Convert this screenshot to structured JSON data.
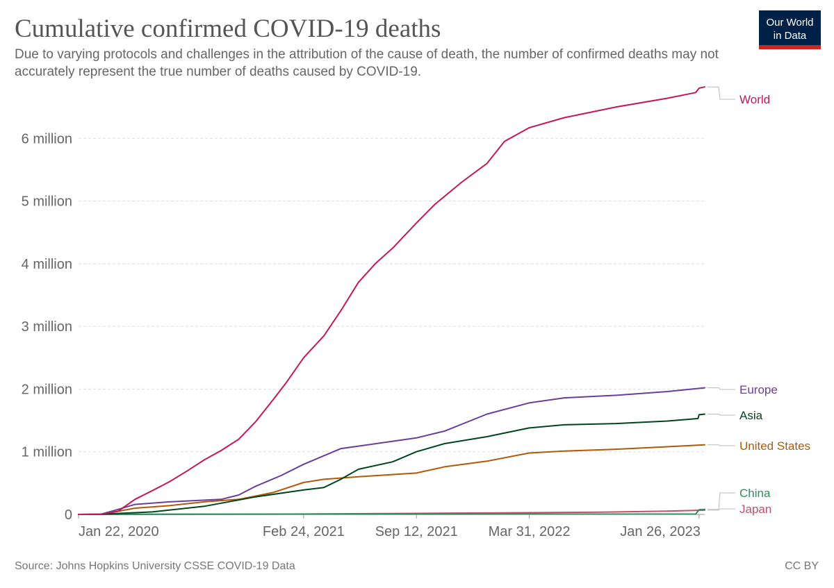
{
  "header": {
    "title": "Cumulative confirmed COVID-19 deaths",
    "subtitle": "Due to varying protocols and challenges in the attribution of the cause of death, the number of confirmed deaths may not accurately represent the true number of deaths caused by COVID-19.",
    "logo_line1": "Our World",
    "logo_line2": "in Data"
  },
  "footer": {
    "source": "Source: Johns Hopkins University CSSE COVID-19 Data",
    "license": "CC BY"
  },
  "colors": {
    "World": "#c2185b",
    "Europe": "#6a3d9a",
    "Asia": "#00441b",
    "United States": "#b35806",
    "China": "#2b8c5e",
    "Japan": "#c44e6b"
  },
  "chart_data": {
    "type": "line",
    "title": "Cumulative confirmed COVID-19 deaths",
    "xlabel": "",
    "ylabel": "",
    "ylim": [
      0,
      6900000
    ],
    "grid": "horizontal dashed",
    "legend": "line-end labels on the right",
    "x_ticks": [
      "Jan 22, 2020",
      "Feb 24, 2021",
      "Sep 12, 2021",
      "Mar 31, 2022",
      "Jan 26, 2023"
    ],
    "y_ticks": [
      {
        "value": 0,
        "label": "0"
      },
      {
        "value": 1000000,
        "label": "1 million"
      },
      {
        "value": 2000000,
        "label": "2 million"
      },
      {
        "value": 3000000,
        "label": "3 million"
      },
      {
        "value": 4000000,
        "label": "4 million"
      },
      {
        "value": 5000000,
        "label": "5 million"
      },
      {
        "value": 6000000,
        "label": "6 million"
      }
    ],
    "series": [
      {
        "name": "World",
        "x": [
          "2020-01-22",
          "2020-03-01",
          "2020-04-01",
          "2020-05-01",
          "2020-06-01",
          "2020-07-01",
          "2020-08-01",
          "2020-09-01",
          "2020-10-01",
          "2020-11-01",
          "2020-12-01",
          "2021-01-01",
          "2021-01-24",
          "2021-02-24",
          "2021-04-01",
          "2021-05-01",
          "2021-06-01",
          "2021-07-01",
          "2021-08-01",
          "2021-09-12",
          "2021-10-15",
          "2021-12-01",
          "2022-01-15",
          "2022-02-15",
          "2022-03-31",
          "2022-06-01",
          "2022-09-01",
          "2022-12-01",
          "2023-01-20",
          "2023-01-26",
          "2023-02-05"
        ],
        "y": [
          0,
          3000,
          50000,
          240000,
          380000,
          520000,
          690000,
          870000,
          1020000,
          1200000,
          1480000,
          1830000,
          2100000,
          2500000,
          2850000,
          3250000,
          3700000,
          4000000,
          4250000,
          4650000,
          4950000,
          5300000,
          5600000,
          5950000,
          6170000,
          6330000,
          6500000,
          6640000,
          6730000,
          6800000,
          6820000
        ]
      },
      {
        "name": "Europe",
        "x": [
          "2020-01-22",
          "2020-03-01",
          "2020-04-01",
          "2020-05-01",
          "2020-07-01",
          "2020-10-01",
          "2020-11-01",
          "2020-12-01",
          "2021-01-15",
          "2021-02-24",
          "2021-05-01",
          "2021-09-12",
          "2021-11-01",
          "2022-01-15",
          "2022-03-31",
          "2022-06-01",
          "2022-09-01",
          "2022-12-01",
          "2023-02-05"
        ],
        "y": [
          0,
          2000,
          80000,
          160000,
          200000,
          240000,
          310000,
          450000,
          620000,
          800000,
          1050000,
          1220000,
          1330000,
          1600000,
          1780000,
          1860000,
          1900000,
          1960000,
          2020000
        ]
      },
      {
        "name": "Asia",
        "x": [
          "2020-01-22",
          "2020-03-01",
          "2020-06-01",
          "2020-09-01",
          "2020-12-01",
          "2021-02-24",
          "2021-04-01",
          "2021-05-01",
          "2021-06-01",
          "2021-08-01",
          "2021-09-12",
          "2021-11-01",
          "2022-01-15",
          "2022-03-31",
          "2022-06-01",
          "2022-09-01",
          "2022-12-01",
          "2023-01-24",
          "2023-01-26",
          "2023-02-05"
        ],
        "y": [
          0,
          3000,
          40000,
          130000,
          280000,
          390000,
          430000,
          560000,
          720000,
          840000,
          1000000,
          1130000,
          1240000,
          1380000,
          1430000,
          1450000,
          1490000,
          1530000,
          1590000,
          1600000
        ]
      },
      {
        "name": "United States",
        "x": [
          "2020-01-22",
          "2020-03-01",
          "2020-04-01",
          "2020-05-01",
          "2020-07-01",
          "2020-09-01",
          "2020-11-01",
          "2021-01-01",
          "2021-02-24",
          "2021-04-01",
          "2021-06-01",
          "2021-09-12",
          "2021-11-01",
          "2022-01-15",
          "2022-03-31",
          "2022-06-01",
          "2022-09-01",
          "2022-12-01",
          "2023-02-05"
        ],
        "y": [
          0,
          100,
          50000,
          100000,
          140000,
          200000,
          240000,
          350000,
          510000,
          560000,
          600000,
          660000,
          760000,
          850000,
          980000,
          1010000,
          1040000,
          1080000,
          1110000
        ]
      },
      {
        "name": "China",
        "x": [
          "2020-01-22",
          "2020-04-01",
          "2022-12-01",
          "2023-01-20",
          "2023-01-26",
          "2023-02-05"
        ],
        "y": [
          0,
          3300,
          5200,
          5300,
          75000,
          80000
        ]
      },
      {
        "name": "Japan",
        "x": [
          "2020-01-22",
          "2020-06-01",
          "2021-01-01",
          "2021-09-12",
          "2022-03-31",
          "2022-08-01",
          "2022-12-01",
          "2023-02-05"
        ],
        "y": [
          0,
          900,
          4000,
          17000,
          28000,
          35000,
          52000,
          68000
        ]
      }
    ],
    "end_labels": [
      "World",
      "Europe",
      "Asia",
      "United States",
      "China",
      "Japan"
    ]
  }
}
